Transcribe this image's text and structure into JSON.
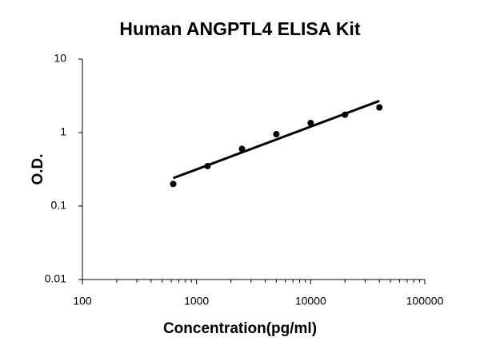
{
  "chart_data": {
    "type": "scatter",
    "title": "Human ANGPTL4 ELISA Kit",
    "x_label": "Concentration(pg/ml)",
    "y_label": "O.D.",
    "x": [
      625,
      1250,
      2500,
      5000,
      10000,
      20000,
      40000
    ],
    "series": [
      {
        "color": "#000000",
        "values": [
          0.2,
          0.35,
          0.6,
          0.95,
          1.35,
          1.75,
          2.2
        ]
      }
    ],
    "trendline": {
      "color": "#000000",
      "x": [
        625,
        40000
      ],
      "values": [
        0.24,
        2.7
      ]
    },
    "xlim": [
      100,
      100000
    ],
    "xticks": [
      100,
      1000,
      10000,
      100000
    ],
    "ylim": [
      0.01,
      10
    ],
    "yticks": [
      0.01,
      0.1,
      1,
      10
    ],
    "xscale": "log",
    "yscale": "log",
    "grid": false
  }
}
